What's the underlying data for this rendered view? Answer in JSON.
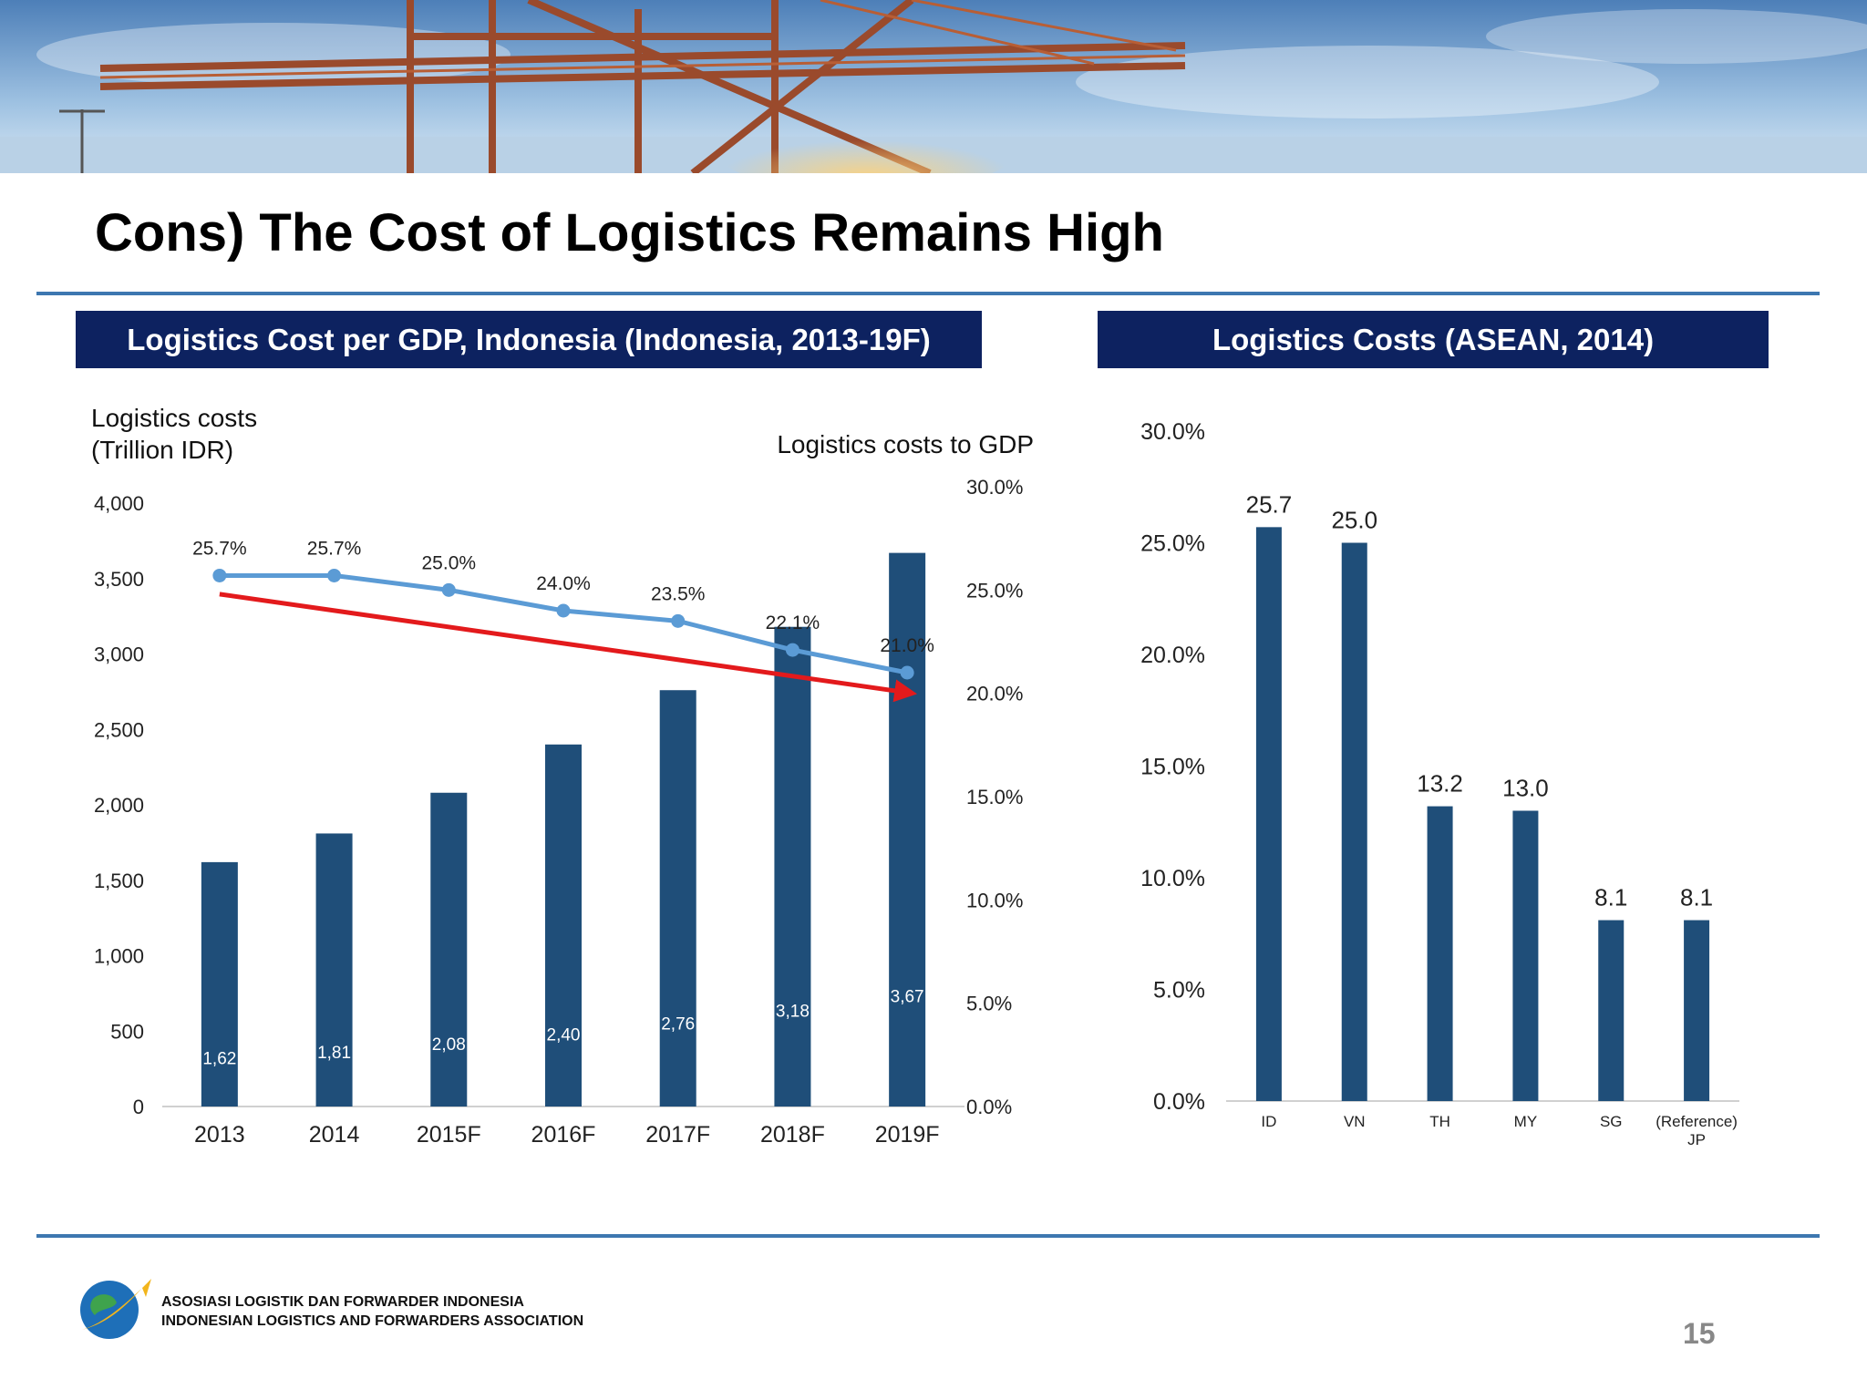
{
  "title": "Cons) The Cost of Logistics Remains High",
  "left_panel_title": "Logistics Cost per GDP, Indonesia (Indonesia, 2013-19F)",
  "right_panel_title": "Logistics Costs (ASEAN, 2014)",
  "footer": {
    "org_line1": "ASOSIASI LOGISTIK DAN FORWARDER INDONESIA",
    "org_line2": "INDONESIAN LOGISTICS AND FORWARDERS ASSOCIATION",
    "page_number": "15"
  },
  "colors": {
    "header_bg": "#0d2260",
    "rule": "#3d77b0",
    "bar": "#1f4e79",
    "line": "#5b9bd5",
    "trend_arrow": "#e31a1c"
  },
  "chart_data": [
    {
      "type": "bar",
      "combo_line": true,
      "categories": [
        "2013",
        "2014",
        "2015F",
        "2016F",
        "2017F",
        "2018F",
        "2019F"
      ],
      "ylabel_lines": [
        "Logistics costs",
        "(Trillion IDR)"
      ],
      "y2label": "Logistics costs to GDP",
      "ylim": [
        0,
        4000
      ],
      "yticks": [
        "0",
        "500",
        "1,000",
        "1,500",
        "2,000",
        "2,500",
        "3,000",
        "3,500",
        "4,000"
      ],
      "y2lim": [
        0,
        30
      ],
      "y2ticks": [
        "0.0%",
        "5.0%",
        "10.0%",
        "15.0%",
        "20.0%",
        "25.0%",
        "30.0%"
      ],
      "series": [
        {
          "kind": "bar",
          "values": [
            1620,
            1810,
            2080,
            2400,
            2760,
            3180,
            3670
          ],
          "labels": [
            "1,62",
            "1,81",
            "2,08",
            "2,40",
            "2,76",
            "3,18",
            "3,67"
          ]
        },
        {
          "kind": "line",
          "axis": "right",
          "values": [
            25.7,
            25.7,
            25.0,
            24.0,
            23.5,
            22.1,
            21.0
          ],
          "labels": [
            "25.7%",
            "25.7%",
            "25.0%",
            "24.0%",
            "23.5%",
            "22.1%",
            "21.0%"
          ]
        }
      ],
      "trend_arrow": {
        "from_category": "2013",
        "to_category": "2019F",
        "from_value": 24.8,
        "to_value": 20.0
      },
      "grid": false
    },
    {
      "type": "bar",
      "categories": [
        "ID",
        "VN",
        "TH",
        "MY",
        "SG",
        "(Reference)\nJP"
      ],
      "values": [
        25.7,
        25.0,
        13.2,
        13.0,
        8.1,
        8.1
      ],
      "labels": [
        "25.7",
        "25.0",
        "13.2",
        "13.0",
        "8.1",
        "8.1"
      ],
      "ylim": [
        0,
        30
      ],
      "yticks": [
        "0.0%",
        "5.0%",
        "10.0%",
        "15.0%",
        "20.0%",
        "25.0%",
        "30.0%"
      ],
      "grid": false
    }
  ]
}
